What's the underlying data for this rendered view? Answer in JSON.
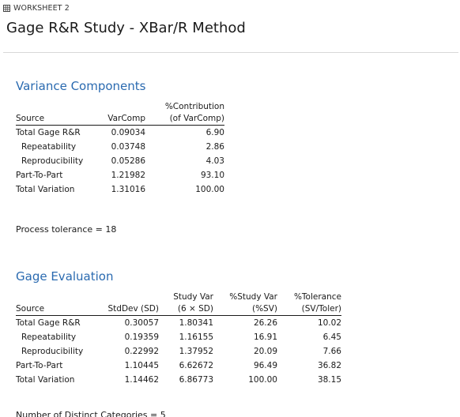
{
  "worksheet": {
    "label": "WORKSHEET 2",
    "icon": "worksheet-grid-icon"
  },
  "page": {
    "title": "Gage R&R Study - XBar/R Method"
  },
  "variance_components": {
    "title": "Variance Components",
    "headers": {
      "source": "Source",
      "varcomp": "VarComp",
      "contribution_line1": "%Contribution",
      "contribution_line2": "(of VarComp)"
    },
    "rows": [
      {
        "source": "Total Gage R&R",
        "varcomp": "0.09034",
        "contribution": "6.90"
      },
      {
        "source": "Repeatability",
        "varcomp": "0.03748",
        "contribution": "2.86"
      },
      {
        "source": "Reproducibility",
        "varcomp": "0.05286",
        "contribution": "4.03"
      },
      {
        "source": "Part-To-Part",
        "varcomp": "1.21982",
        "contribution": "93.10"
      },
      {
        "source": "Total Variation",
        "varcomp": "1.31016",
        "contribution": "100.00"
      }
    ]
  },
  "process_tolerance": {
    "text": "Process tolerance = 18"
  },
  "gage_evaluation": {
    "title": "Gage Evaluation",
    "headers": {
      "source": "Source",
      "stddev": "StdDev (SD)",
      "studyvar_line1": "Study Var",
      "studyvar_line2": "(6 × SD)",
      "pct_studyvar_line1": "%Study Var",
      "pct_studyvar_line2": "(%SV)",
      "pct_tolerance_line1": "%Tolerance",
      "pct_tolerance_line2": "(SV/Toler)"
    },
    "rows": [
      {
        "source": "Total Gage R&R",
        "stddev": "0.30057",
        "studyvar": "1.80341",
        "pct_sv": "26.26",
        "pct_tol": "10.02"
      },
      {
        "source": "Repeatability",
        "stddev": "0.19359",
        "studyvar": "1.16155",
        "pct_sv": "16.91",
        "pct_tol": "6.45"
      },
      {
        "source": "Reproducibility",
        "stddev": "0.22992",
        "studyvar": "1.37952",
        "pct_sv": "20.09",
        "pct_tol": "7.66"
      },
      {
        "source": "Part-To-Part",
        "stddev": "1.10445",
        "studyvar": "6.62672",
        "pct_sv": "96.49",
        "pct_tol": "36.82"
      },
      {
        "source": "Total Variation",
        "stddev": "1.14462",
        "studyvar": "6.86773",
        "pct_sv": "100.00",
        "pct_tol": "38.15"
      }
    ]
  },
  "cutoff": {
    "text": "Number of Distinct Categories = 5"
  }
}
